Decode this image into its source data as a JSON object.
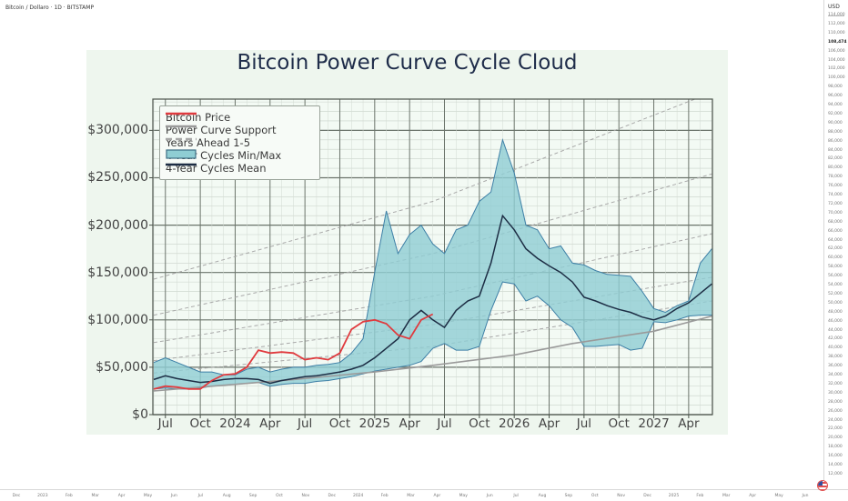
{
  "header": {
    "symbol_title": "Bitcoin / Dollaro · 1D · BITSTAMP"
  },
  "price_axis": {
    "currency": "USD",
    "current_price": "108,474",
    "labels": [
      "114,000",
      "112,000",
      "110,000",
      "108,474",
      "106,000",
      "104,000",
      "102,000",
      "100,000",
      "98,000",
      "96,000",
      "94,000",
      "92,000",
      "90,000",
      "88,000",
      "86,000",
      "84,000",
      "82,000",
      "80,000",
      "78,000",
      "76,000",
      "74,000",
      "72,000",
      "70,000",
      "68,000",
      "66,000",
      "64,000",
      "62,000",
      "60,000",
      "58,000",
      "56,000",
      "54,000",
      "52,000",
      "50,000",
      "48,000",
      "46,000",
      "44,000",
      "42,000",
      "40,000",
      "38,000",
      "36,000",
      "34,000",
      "32,000",
      "30,000",
      "28,000",
      "26,000",
      "24,000",
      "22,000",
      "20,000",
      "18,000",
      "16,000",
      "14,000",
      "12,000"
    ]
  },
  "time_axis": {
    "labels": [
      "Dec",
      "2023",
      "Feb",
      "Mar",
      "Apr",
      "May",
      "Jun",
      "Jul",
      "Aug",
      "Sep",
      "Oct",
      "Nov",
      "Dec",
      "2024",
      "Feb",
      "Mar",
      "Apr",
      "May",
      "Jun",
      "Jul",
      "Aug",
      "Sep",
      "Oct",
      "Nov",
      "Dec",
      "2025",
      "Feb",
      "Mar",
      "Apr",
      "May",
      "Jun"
    ]
  },
  "icons": {
    "flag": "us-flag-icon"
  },
  "chart_data": {
    "type": "line",
    "title": "Bitcoin Power Curve Cycle Cloud",
    "xlabel": "",
    "ylabel": "",
    "ylim": [
      0,
      333000
    ],
    "xlim": [
      "2023-06",
      "2027-06"
    ],
    "grid": true,
    "legend_placement": "top-left",
    "y_ticks": [
      "$0",
      "$50,000",
      "$100,000",
      "$150,000",
      "$200,000",
      "$250,000",
      "$300,000"
    ],
    "y_tick_values": [
      0,
      50000,
      100000,
      150000,
      200000,
      250000,
      300000
    ],
    "x_ticks": [
      "Jul",
      "Oct",
      "2024",
      "Apr",
      "Jul",
      "Oct",
      "2025",
      "Apr",
      "Jul",
      "Oct",
      "2026",
      "Apr",
      "Jul",
      "Oct",
      "2027",
      "Apr"
    ],
    "x_tick_dates": [
      "2023-07",
      "2023-10",
      "2024-01",
      "2024-04",
      "2024-07",
      "2024-10",
      "2025-01",
      "2025-04",
      "2025-07",
      "2025-10",
      "2026-01",
      "2026-04",
      "2026-07",
      "2026-10",
      "2027-01",
      "2027-04"
    ],
    "colors": {
      "price": "#e03a3e",
      "support": "#9a9a9a",
      "years_ahead": "#a8a8a8",
      "band_fill": "#8fcdd3",
      "band_edge": "#3d7fa6",
      "mean": "#1d2d44"
    },
    "legend": [
      "Bitcoin Price",
      "Power Curve Support",
      "Years Ahead 1-5",
      "4-Year Cycles Min/Max",
      "4-Year Cycles Mean"
    ],
    "band_dates": [
      "2023-06",
      "2023-07",
      "2023-08",
      "2023-09",
      "2023-10",
      "2023-11",
      "2023-12",
      "2024-01",
      "2024-02",
      "2024-03",
      "2024-04",
      "2024-05",
      "2024-06",
      "2024-07",
      "2024-08",
      "2024-09",
      "2024-10",
      "2024-11",
      "2024-12",
      "2025-01",
      "2025-02",
      "2025-03",
      "2025-04",
      "2025-05",
      "2025-06",
      "2025-07",
      "2025-08",
      "2025-09",
      "2025-10",
      "2025-11",
      "2025-12",
      "2026-01",
      "2026-02",
      "2026-03",
      "2026-04",
      "2026-05",
      "2026-06",
      "2026-07",
      "2026-08",
      "2026-09",
      "2026-10",
      "2026-11",
      "2026-12",
      "2027-01",
      "2027-02",
      "2027-03",
      "2027-04",
      "2027-05",
      "2027-06"
    ],
    "series": [
      {
        "name": "4-Year Cycles Min/Max",
        "kind": "band",
        "max": [
          55000,
          60000,
          55000,
          50000,
          45000,
          45000,
          42000,
          42000,
          48000,
          50000,
          45000,
          48000,
          50000,
          50000,
          52000,
          53000,
          55000,
          65000,
          80000,
          150000,
          215000,
          170000,
          190000,
          200000,
          180000,
          170000,
          195000,
          200000,
          225000,
          235000,
          290000,
          255000,
          200000,
          195000,
          175000,
          178000,
          160000,
          158000,
          152000,
          148000,
          147000,
          146000,
          130000,
          112000,
          108000,
          115000,
          120000,
          160000,
          175000
        ],
        "min": [
          27000,
          28000,
          27000,
          27000,
          28000,
          30000,
          31000,
          32000,
          33000,
          34000,
          30000,
          32000,
          33000,
          33000,
          35000,
          36000,
          38000,
          40000,
          43000,
          46000,
          48000,
          50000,
          52000,
          56000,
          70000,
          75000,
          68000,
          68000,
          72000,
          110000,
          140000,
          138000,
          120000,
          125000,
          115000,
          100000,
          92000,
          72000,
          72000,
          73000,
          74000,
          68000,
          70000,
          98000,
          97000,
          100000,
          104000,
          105000,
          105000
        ]
      },
      {
        "name": "4-Year Cycles Mean",
        "kind": "mean",
        "values": [
          37000,
          41000,
          38000,
          36000,
          34000,
          35000,
          37000,
          38000,
          38000,
          37000,
          33000,
          36000,
          38000,
          40000,
          41000,
          43000,
          45000,
          48000,
          52000,
          60000,
          70000,
          80000,
          100000,
          110000,
          100000,
          92000,
          110000,
          120000,
          125000,
          160000,
          210000,
          195000,
          175000,
          165000,
          157000,
          150000,
          140000,
          124000,
          120000,
          115000,
          111000,
          108000,
          103000,
          100000,
          104000,
          112000,
          118000,
          128000,
          138000
        ]
      },
      {
        "name": "Bitcoin Price",
        "kind": "price",
        "dates": [
          "2023-06",
          "2023-07",
          "2023-08",
          "2023-09",
          "2023-10",
          "2023-11",
          "2023-12",
          "2024-01",
          "2024-02",
          "2024-03",
          "2024-04",
          "2024-05",
          "2024-06",
          "2024-07",
          "2024-08",
          "2024-09",
          "2024-10",
          "2024-11",
          "2024-12",
          "2025-01",
          "2025-02",
          "2025-03",
          "2025-04",
          "2025-05",
          "2025-06"
        ],
        "values": [
          27000,
          30000,
          29000,
          27000,
          27000,
          36000,
          42000,
          43000,
          50000,
          68000,
          65000,
          66000,
          65000,
          58000,
          60000,
          58000,
          65000,
          90000,
          98000,
          100000,
          96000,
          84000,
          80000,
          100000,
          106000
        ]
      },
      {
        "name": "Power Curve Support",
        "kind": "support",
        "dates": [
          "2023-06",
          "2024-01",
          "2024-06",
          "2025-01",
          "2025-06",
          "2026-01",
          "2026-06",
          "2027-01",
          "2027-06"
        ],
        "values": [
          25000,
          32000,
          37000,
          45000,
          52000,
          63000,
          75000,
          88000,
          104000
        ]
      },
      {
        "name": "Years Ahead 1-5",
        "kind": "years_ahead",
        "dates": [
          "2023-06",
          "2025-06",
          "2027-06"
        ],
        "lines": [
          [
            44000,
            72000,
            120000
          ],
          [
            57000,
            95000,
            145000
          ],
          [
            76000,
            125000,
            191000
          ],
          [
            105000,
            170000,
            254000
          ],
          [
            143000,
            225000,
            340000
          ]
        ]
      }
    ]
  }
}
